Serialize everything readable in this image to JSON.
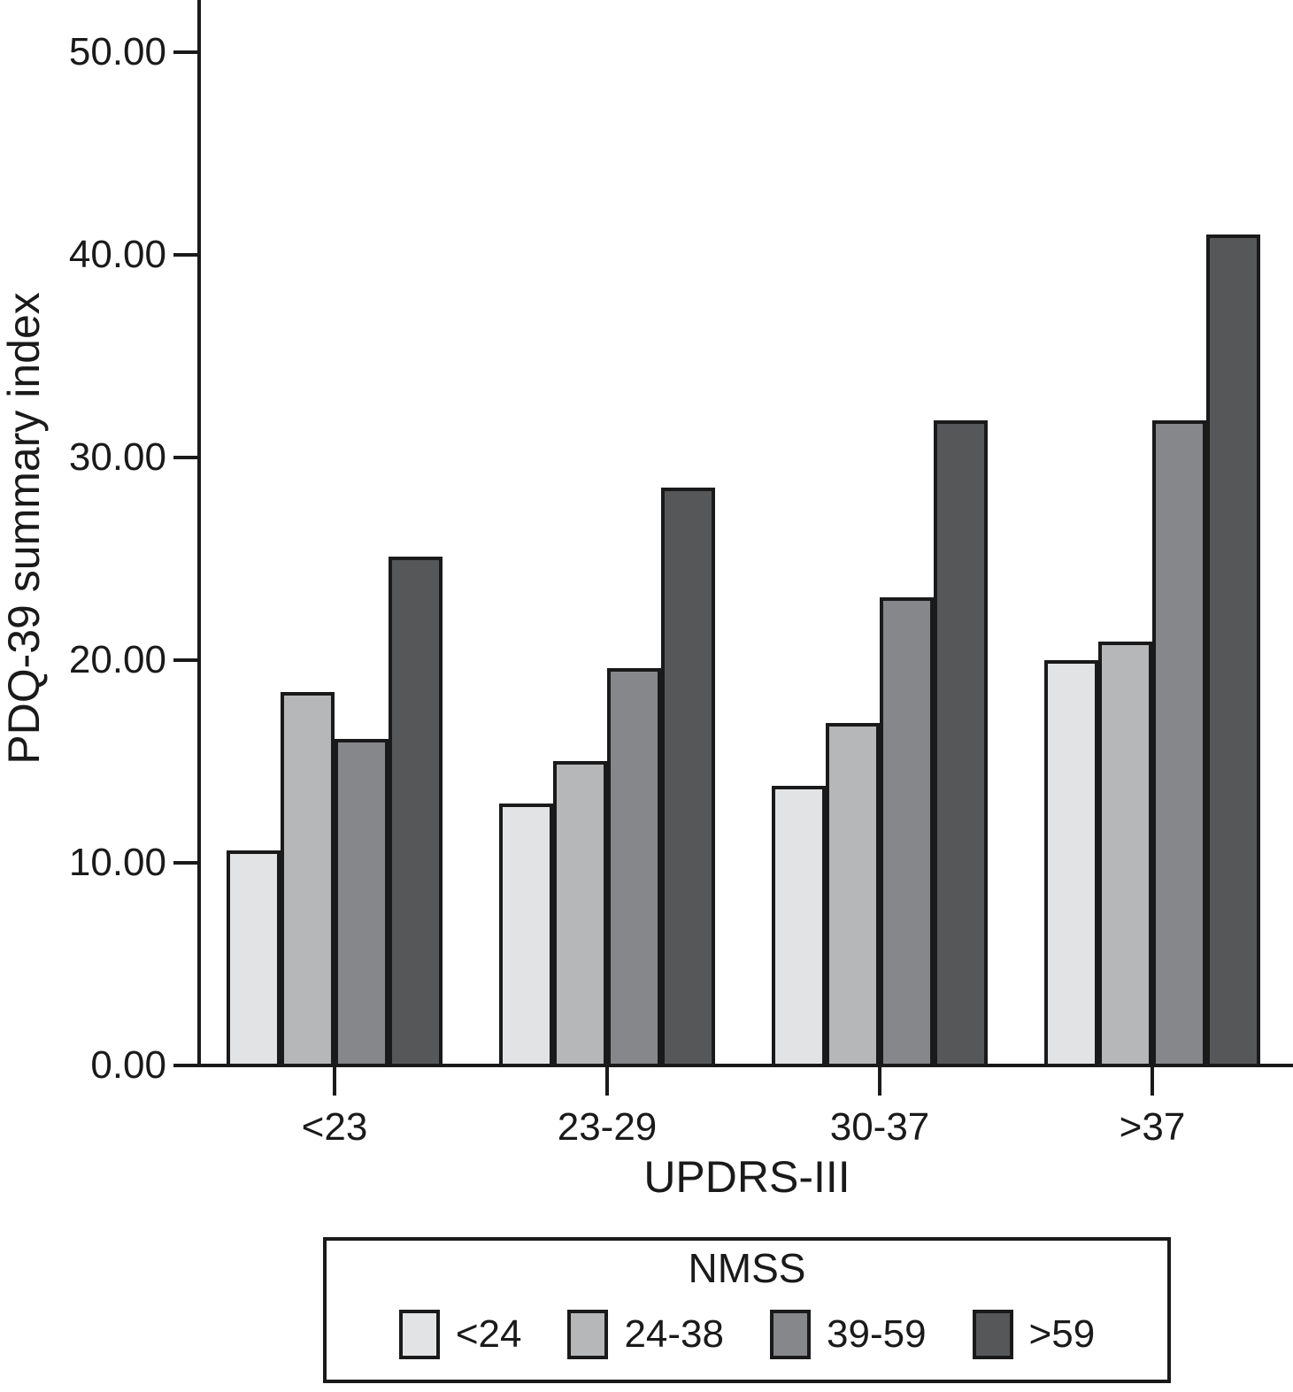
{
  "chart_data": {
    "type": "bar",
    "title": "",
    "xlabel": "UPDRS-III",
    "ylabel": "PDQ-39 summary index",
    "categories": [
      "<23",
      "23-29",
      "30-37",
      ">37"
    ],
    "series": [
      {
        "name": "<24",
        "color": "#e2e3e4",
        "values": [
          10.7,
          13.0,
          13.9,
          20.1
        ]
      },
      {
        "name": "24-38",
        "color": "#b5b7b8",
        "values": [
          18.5,
          15.1,
          17.0,
          21.0
        ]
      },
      {
        "name": "39-59",
        "color": "#85878a",
        "values": [
          16.2,
          19.7,
          23.2,
          31.9
        ]
      },
      {
        "name": ">59",
        "color": "#565759",
        "values": [
          25.2,
          28.6,
          31.9,
          41.1
        ]
      }
    ],
    "ylim": [
      0,
      52.5
    ],
    "ytick_labels": [
      "0.00",
      "10.00",
      "20.00",
      "30.00",
      "40.00",
      "50.00"
    ],
    "legend_title": "NMSS",
    "legend_position": "bottom",
    "grid": false,
    "axis_color": "#1a1a1a",
    "background_color": "#ffffff"
  }
}
